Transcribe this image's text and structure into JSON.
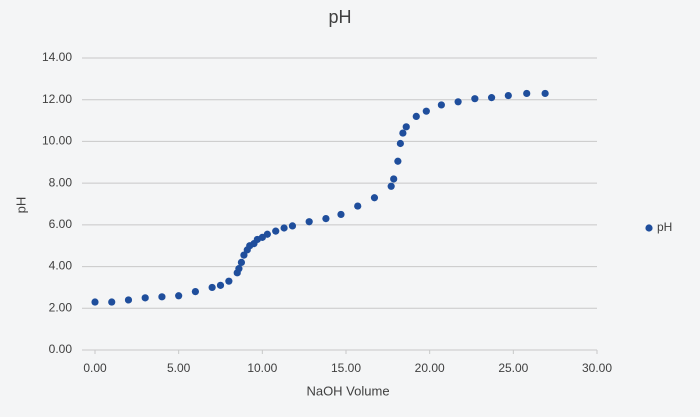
{
  "chart_data": {
    "type": "scatter",
    "title": "pH",
    "x_label": "NaOH Volume",
    "y_label": "pH",
    "legend": "right",
    "grid": true,
    "xlim": [
      0,
      30
    ],
    "xticks": [
      {
        "value": 0,
        "label": "0.00"
      },
      {
        "value": 5,
        "label": "5.00"
      },
      {
        "value": 10,
        "label": "10.00"
      },
      {
        "value": 15,
        "label": "15.00"
      },
      {
        "value": 20,
        "label": "20.00"
      },
      {
        "value": 25,
        "label": "25.00"
      },
      {
        "value": 30,
        "label": "30.00"
      }
    ],
    "ylim": [
      0,
      14
    ],
    "yticks": [
      {
        "value": 0,
        "label": "0.00"
      },
      {
        "value": 2,
        "label": "2.00"
      },
      {
        "value": 4,
        "label": "4.00"
      },
      {
        "value": 6,
        "label": "6.00"
      },
      {
        "value": 8,
        "label": "8.00"
      },
      {
        "value": 10,
        "label": "10.00"
      },
      {
        "value": 12,
        "label": "12.00"
      },
      {
        "value": 14,
        "label": "14.00"
      }
    ],
    "series": [
      {
        "name": "pH",
        "color": "#1f4e9c",
        "x": [
          0,
          1,
          2,
          3,
          4,
          5,
          6,
          7,
          7.5,
          8,
          8.5,
          8.6,
          8.75,
          8.9,
          9.1,
          9.25,
          9.5,
          9.7,
          10,
          10.3,
          10.8,
          11.3,
          11.8,
          12.8,
          13.8,
          14.7,
          15.7,
          16.7,
          17.7,
          17.85,
          18.1,
          18.25,
          18.4,
          18.6,
          19.2,
          19.8,
          20.7,
          21.7,
          22.7,
          23.7,
          24.7,
          25.8,
          26.9
        ],
        "values": [
          2.3,
          2.3,
          2.4,
          2.5,
          2.55,
          2.6,
          2.8,
          3.0,
          3.1,
          3.3,
          3.7,
          3.9,
          4.2,
          4.55,
          4.8,
          5.0,
          5.1,
          5.3,
          5.4,
          5.55,
          5.7,
          5.85,
          5.95,
          6.15,
          6.3,
          6.5,
          6.9,
          7.3,
          7.85,
          8.2,
          9.05,
          9.9,
          10.4,
          10.7,
          11.2,
          11.45,
          11.75,
          11.9,
          12.05,
          12.1,
          12.2,
          12.3,
          12.3
        ]
      }
    ]
  }
}
